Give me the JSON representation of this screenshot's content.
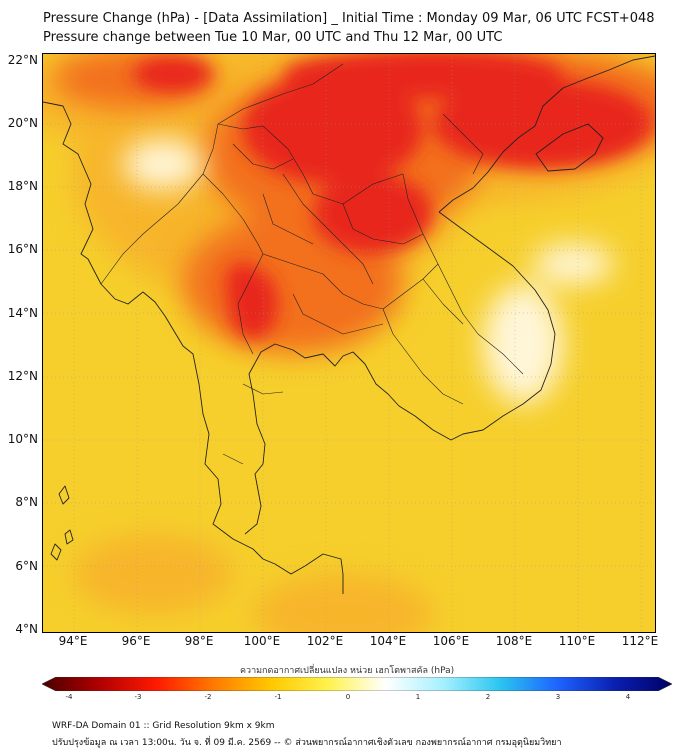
{
  "header": {
    "title_line1": "Pressure Change (hPa) - [Data Assimilation] _ Initial Time : Monday 09 Mar, 06 UTC FCST+048",
    "title_line2": "Pressure change between Tue 10 Mar, 00 UTC and Thu 12 Mar, 00 UTC"
  },
  "map": {
    "lat_labels": [
      "22°N",
      "20°N",
      "18°N",
      "16°N",
      "14°N",
      "12°N",
      "10°N",
      "8°N",
      "6°N",
      "4°N"
    ],
    "lon_labels": [
      "94°E",
      "96°E",
      "98°E",
      "100°E",
      "102°E",
      "104°E",
      "106°E",
      "108°E",
      "110°E",
      "112°E"
    ],
    "field_colors": {
      "background": "#f6cf2c",
      "strong_fall": "#e8271b",
      "moderate_fall": "#f3701e",
      "weak_fall": "#f7b52a",
      "near_zero": "#fff6d8"
    },
    "coastline_color": "#222222"
  },
  "colorbar": {
    "title": "ความกดอากาศเปลี่ยนแปลง หน่วย เฮกโตพาสคัล (hPa)",
    "ticks": [
      "-4",
      "-3",
      "-2",
      "-1",
      "0",
      "1",
      "2",
      "3",
      "4"
    ],
    "colors": [
      "#4a0000",
      "#b00000",
      "#ff1a00",
      "#ff7a00",
      "#ffc800",
      "#fff24d",
      "#ffffff",
      "#a6f0ff",
      "#2bc5f0",
      "#1e64ff",
      "#0a1fb0",
      "#000066"
    ]
  },
  "footer": {
    "line1": "WRF-DA Domain 01 :: Grid Resolution 9km x 9km",
    "line2": "ปรับปรุงข้อมูล ณ เวลา 13:00น. วัน จ. ที่ 09 มี.ค. 2569 -- © ส่วนพยากรณ์อากาศเชิงตัวเลข กองพยากรณ์อากาศ กรมอุตุนิยมวิทยา"
  }
}
